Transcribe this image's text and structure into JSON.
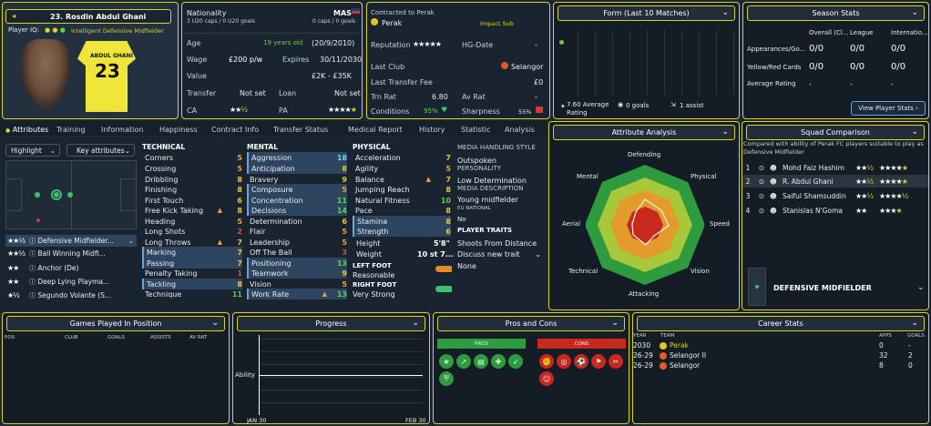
{
  "player": {
    "number_name": "23. Rosdin Abdul Ghani",
    "iq_label": "Player IQ:",
    "role": "Intelligent Defensive Midfielder",
    "shirt_name": "ABDUL GHANI",
    "shirt_number": "23"
  },
  "info": {
    "nationality_label": "Nationality",
    "nationality": "MAS",
    "caps_u20": "3 U20 caps / 0 U20 goals",
    "caps": "0 caps / 0 goals",
    "age_label": "Age",
    "age": "19 years old",
    "dob": "(20/9/2010)",
    "wage_label": "Wage",
    "wage": "£200 p/w",
    "expires_label": "Expires",
    "expires": "30/11/2030",
    "value_label": "Value",
    "value": "£2K - £35K",
    "transfer_label": "Transfer",
    "transfer": "Not set",
    "loan_label": "Loan",
    "loan": "Not set",
    "ca_label": "CA",
    "pa_label": "PA"
  },
  "contract": {
    "contracted_label": "Contracted to Perak",
    "club": "Perak",
    "status": "Impact Sub",
    "reputation_label": "Reputation",
    "hg_label": "HG-Date",
    "hg_value": "-",
    "last_club_label": "Last Club",
    "last_club": "Selangor",
    "last_fee_label": "Last Transfer Fee",
    "last_fee": "£0",
    "trn_rat_label": "Trn Rat",
    "trn_rat": "6.80",
    "av_rat_label": "Av Rat",
    "av_rat": "-",
    "conditions_label": "Conditions",
    "conditions": "95%",
    "sharpness_label": "Sharpness",
    "sharpness": "55%"
  },
  "form": {
    "title": "Form (Last 10 Matches)",
    "avg": "7.60 Average Rating",
    "goals": "0 goals",
    "assists": "1 assist"
  },
  "season": {
    "title": "Season Stats",
    "cols": [
      "Overall (Cl...",
      "League",
      "Internatio..."
    ],
    "rows": [
      {
        "label": "Appearances/Go...",
        "v": [
          "0/0",
          "0/0",
          "0/0"
        ]
      },
      {
        "label": "Yellow/Red Cards",
        "v": [
          "0/0",
          "0/0",
          "0/0"
        ]
      },
      {
        "label": "Average Rating",
        "v": [
          "-",
          "-",
          "-"
        ]
      }
    ],
    "button": "View Player Stats"
  },
  "tabs": [
    "Attributes",
    "Training",
    "Information",
    "Happiness",
    "Contract Info",
    "Transfer Status",
    "Medical Report",
    "History",
    "Statistic",
    "Analysis"
  ],
  "highlight": {
    "dropdown": "Highlight",
    "key_attrs": "Key attributes"
  },
  "roles": [
    {
      "name": "Defensive Midfielder...",
      "stars": "★★½"
    },
    {
      "name": "Ball Winning Midfi...",
      "stars": "★★½"
    },
    {
      "name": "Anchor (De)",
      "stars": "★★"
    },
    {
      "name": "Deep Lying Playma...",
      "stars": "★★"
    },
    {
      "name": "Segundo Volante (S...",
      "stars": "★½"
    }
  ],
  "technical": {
    "title": "TECHNICAL",
    "items": [
      [
        "Corners",
        "5"
      ],
      [
        "Crossing",
        "5"
      ],
      [
        "Dribbling",
        "8"
      ],
      [
        "Finishing",
        "8"
      ],
      [
        "First Touch",
        "6"
      ],
      [
        "Free Kick Taking",
        "8"
      ],
      [
        "Heading",
        "5"
      ],
      [
        "Long Shots",
        "2"
      ],
      [
        "Long Throws",
        "7"
      ],
      [
        "Marking",
        "7"
      ],
      [
        "Passing",
        "7"
      ],
      [
        "Penalty Taking",
        "1"
      ],
      [
        "Tackling",
        "8"
      ],
      [
        "Technique",
        "11"
      ]
    ]
  },
  "mental": {
    "title": "MENTAL",
    "items": [
      [
        "Aggression",
        "18"
      ],
      [
        "Anticipation",
        "8"
      ],
      [
        "Bravery",
        "9"
      ],
      [
        "Composure",
        "5"
      ],
      [
        "Concentration",
        "11"
      ],
      [
        "Decisions",
        "14"
      ],
      [
        "Determination",
        "6"
      ],
      [
        "Flair",
        "5"
      ],
      [
        "Leadership",
        "5"
      ],
      [
        "Off The Ball",
        "3"
      ],
      [
        "Positioning",
        "13"
      ],
      [
        "Teamwork",
        "9"
      ],
      [
        "Vision",
        "5"
      ],
      [
        "Work Rate",
        "13"
      ]
    ]
  },
  "physical": {
    "title": "PHYSICAL",
    "items": [
      [
        "Acceleration",
        "7"
      ],
      [
        "Agility",
        "5"
      ],
      [
        "Balance",
        "7"
      ],
      [
        "Jumping Reach",
        "8"
      ],
      [
        "Natural Fitness",
        "10"
      ],
      [
        "Pace",
        "8"
      ],
      [
        "Stamina",
        "8"
      ],
      [
        "Strength",
        "6"
      ]
    ],
    "height_label": "Height",
    "height": "5'8\"",
    "weight_label": "Weight",
    "weight": "10 st 7...",
    "left_foot_label": "LEFT FOOT",
    "left_foot": "Reasonable",
    "right_foot_label": "RIGHT FOOT",
    "right_foot": "Very Strong"
  },
  "media": {
    "style_label": "MEDIA HANDLING STYLE",
    "style": "Outspoken",
    "personality_label": "PERSONALITY",
    "personality": "Low Determination",
    "desc_label": "MEDIA DESCRIPTION",
    "desc": "Young midfielder",
    "eu_label": "EU NATIONAL",
    "eu": "No",
    "traits_label": "PLAYER TRAITS",
    "trait1": "Shoots From Distance",
    "trait2": "Discuss new trait",
    "trait3": "None"
  },
  "analysis": {
    "title": "Attribute Analysis",
    "labels": [
      "Defending",
      "Physical",
      "Speed",
      "Vision",
      "Attacking",
      "Technical",
      "Aerial",
      "Mental"
    ]
  },
  "squad": {
    "title": "Squad Comparison",
    "desc": "Compared with ability of Perak FC players suitable to play as Defensive Midfielder",
    "rows": [
      [
        "1",
        "Mohd Faiz Hashim"
      ],
      [
        "2",
        "R. Abdul Ghani"
      ],
      [
        "3",
        "Saiful Shamsuddin"
      ],
      [
        "4",
        "Stanislas N'Goma"
      ]
    ],
    "position": "DEFENSIVE MIDFIELDER"
  },
  "games": {
    "title": "Games Played In Position",
    "cols": [
      "POS",
      "CLUB",
      "GOALS",
      "ASSISTS",
      "AV RAT"
    ]
  },
  "progress": {
    "title": "Progress",
    "ylabel": "Ability",
    "x_start": "JAN 30",
    "x_end": "FEB 30"
  },
  "proscons": {
    "title": "Pros and Cons",
    "pros": "PROS",
    "cons": "CONS"
  },
  "career": {
    "title": "Career Stats",
    "cols": [
      "YEAR",
      "TEAM",
      "APPS",
      "GOALS"
    ],
    "rows": [
      [
        "2030",
        "Perak",
        "0",
        "-"
      ],
      [
        "26-29",
        "Selangor II",
        "32",
        "2"
      ],
      [
        "26-29",
        "Selangor",
        "8",
        "0"
      ]
    ]
  }
}
